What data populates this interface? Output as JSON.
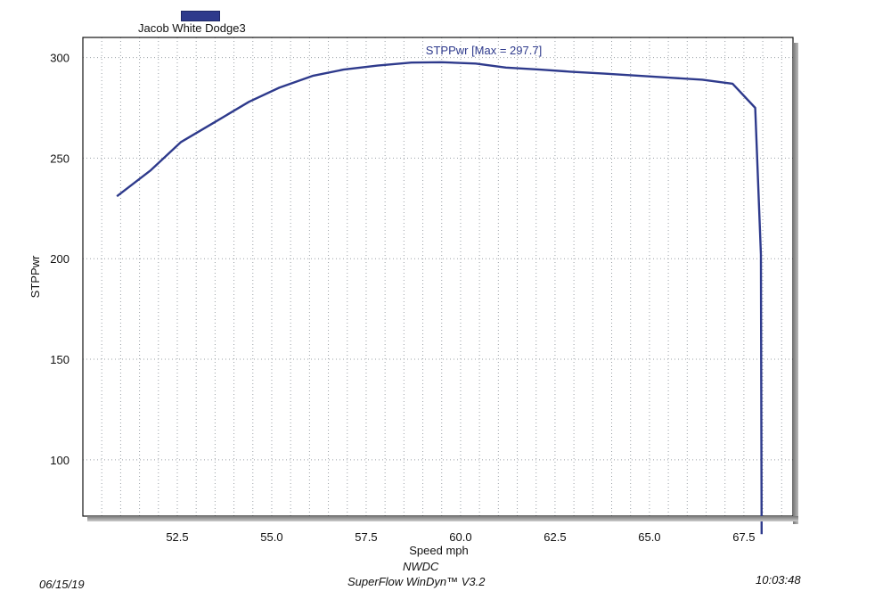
{
  "legend": {
    "label": "Jacob White Dodge3",
    "color": "#2e3a8c"
  },
  "footer": {
    "date": "06/15/19",
    "org": "NWDC",
    "software": "SuperFlow WinDyn™ V3.2",
    "time": "10:03:48"
  },
  "chart_data": {
    "type": "line",
    "title": "",
    "xlabel": "Speed  mph",
    "ylabel": "STPPwr",
    "xlim": [
      50.0,
      68.8
    ],
    "ylim": [
      72,
      310
    ],
    "xticks": [
      52.5,
      55.0,
      57.5,
      60.0,
      62.5,
      65.0,
      67.5
    ],
    "xtick_labels": [
      "52.5",
      "55.0",
      "57.5",
      "60.0",
      "62.5",
      "65.0",
      "67.5"
    ],
    "yticks": [
      100,
      150,
      200,
      250,
      300
    ],
    "ytick_labels": [
      "100",
      "150",
      "200",
      "250",
      "300"
    ],
    "grid": true,
    "legend_position": "top-left",
    "annotation": "STPPwr [Max = 297.7]",
    "series": [
      {
        "name": "Jacob White Dodge3",
        "color": "#2e3a8c",
        "x": [
          50.9,
          51.8,
          52.6,
          53.5,
          54.4,
          55.2,
          56.1,
          56.9,
          57.8,
          58.7,
          59.5,
          60.4,
          61.2,
          62.1,
          62.9,
          63.8,
          64.7,
          65.5,
          66.4,
          67.2,
          67.8,
          67.95,
          67.97
        ],
        "y": [
          231,
          244,
          258,
          268,
          278,
          285,
          291,
          294,
          296,
          297.5,
          297.7,
          297,
          295,
          294,
          293,
          292,
          291,
          290,
          289,
          287,
          275,
          202,
          63
        ]
      }
    ]
  }
}
